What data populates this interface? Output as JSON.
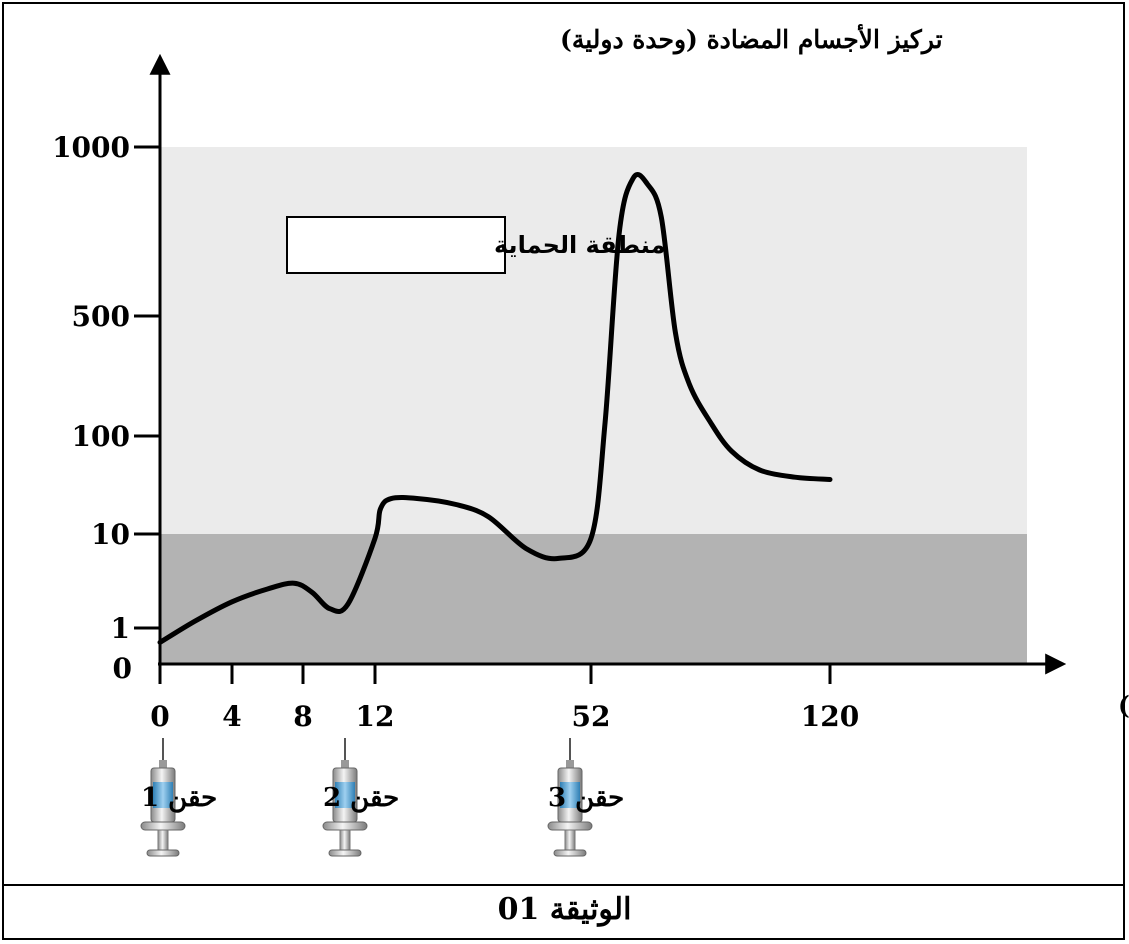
{
  "chart_data": {
    "type": "line",
    "ylabel": "تركيز الأجسام المضادة (وحدة دولية)",
    "xlabel": "الزمن (الأيام)",
    "y_ticks": [
      "1000",
      "500",
      "100",
      "10",
      "1",
      "0"
    ],
    "x_ticks": [
      "0",
      "4",
      "8",
      "12",
      "52",
      "120"
    ],
    "protection_zone": {
      "label": "منطقة الحماية",
      "from": 10,
      "to": 1000
    },
    "injections": [
      {
        "label": "حقن 1",
        "day": 0
      },
      {
        "label": "حقن 2",
        "day": 12
      },
      {
        "label": "حقن 3",
        "day": 52
      }
    ],
    "colors": {
      "protection": "#ebebeb",
      "below": "#b3b3b3",
      "curve": "#000000"
    },
    "series": [
      {
        "points": [
          {
            "x": 0,
            "y": 0.6
          },
          {
            "x": 2,
            "y": 1.2
          },
          {
            "x": 4,
            "y": 1.9
          },
          {
            "x": 6,
            "y": 2.6
          },
          {
            "x": 7.5,
            "y": 3.0
          },
          {
            "x": 8.5,
            "y": 2.4
          },
          {
            "x": 9.5,
            "y": 1.6
          },
          {
            "x": 10.5,
            "y": 1.8
          },
          {
            "x": 12,
            "y": 9
          },
          {
            "x": 13,
            "y": 18
          },
          {
            "x": 15,
            "y": 23
          },
          {
            "x": 20,
            "y": 23
          },
          {
            "x": 27,
            "y": 20
          },
          {
            "x": 33,
            "y": 15
          },
          {
            "x": 40,
            "y": 7
          },
          {
            "x": 46,
            "y": 5.5
          },
          {
            "x": 52,
            "y": 9
          },
          {
            "x": 56,
            "y": 120
          },
          {
            "x": 60,
            "y": 700
          },
          {
            "x": 64,
            "y": 880
          },
          {
            "x": 68,
            "y": 860
          },
          {
            "x": 72,
            "y": 750
          },
          {
            "x": 76,
            "y": 400
          },
          {
            "x": 80,
            "y": 200
          },
          {
            "x": 86,
            "y": 120
          },
          {
            "x": 92,
            "y": 70
          },
          {
            "x": 100,
            "y": 45
          },
          {
            "x": 110,
            "y": 38
          },
          {
            "x": 120,
            "y": 36
          }
        ]
      }
    ]
  },
  "document_label": "الوثيقة 01"
}
